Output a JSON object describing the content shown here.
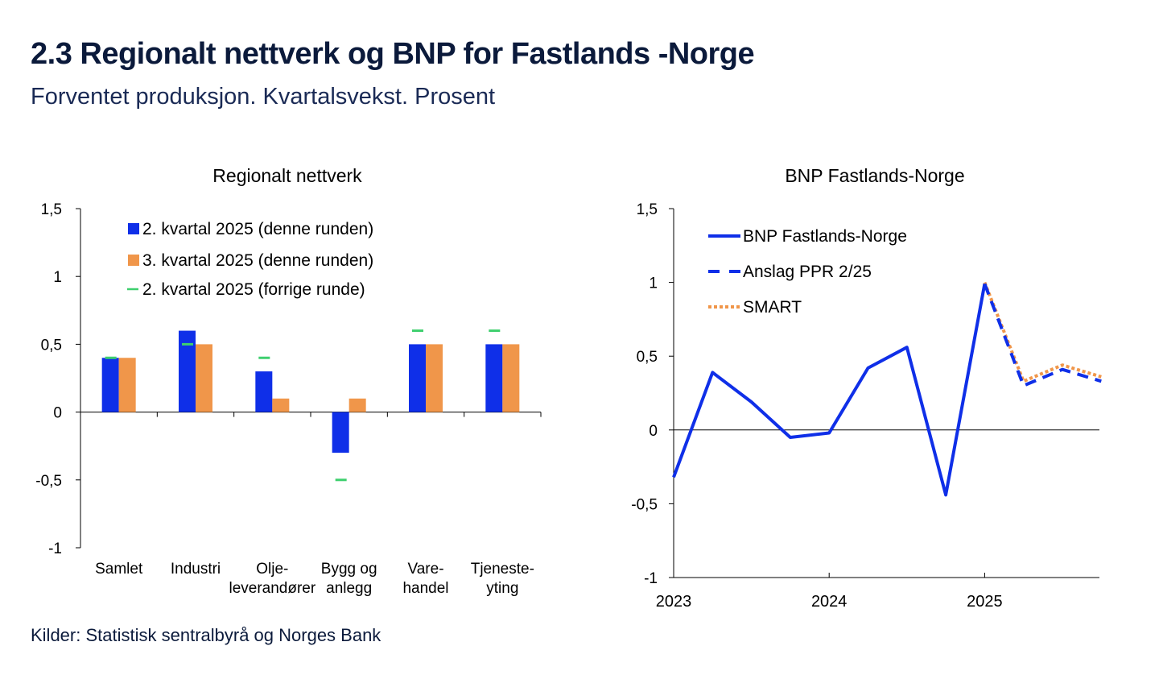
{
  "title": "2.3 Regionalt nettverk og BNP for Fastlands -Norge",
  "subtitle": "Forventet produksjon. Kvartalsvekst. Prosent",
  "source": "Kilder: Statistisk sentralbyrå og Norges Bank",
  "colors": {
    "blue": "#0f2fe8",
    "orange": "#f0964a",
    "green": "#3ecf6e"
  },
  "chart_data": [
    {
      "type": "bar",
      "title": "Regionalt nettverk",
      "categories": [
        [
          "Samlet"
        ],
        [
          "Industri"
        ],
        [
          "Olje-",
          "leverandører"
        ],
        [
          "Bygg og",
          "anlegg"
        ],
        [
          "Vare-",
          "handel"
        ],
        [
          "Tjeneste-",
          "yting"
        ]
      ],
      "series": [
        {
          "name": "2. kvartal 2025 (denne runden)",
          "kind": "bar",
          "color": "#0f2fe8",
          "values": [
            0.4,
            0.6,
            0.3,
            -0.3,
            0.5,
            0.5
          ]
        },
        {
          "name": "3. kvartal 2025 (denne runden)",
          "kind": "bar",
          "color": "#f0964a",
          "values": [
            0.4,
            0.5,
            0.1,
            0.1,
            0.5,
            0.5
          ]
        },
        {
          "name": "2. kvartal 2025 (forrige runde)",
          "kind": "marker",
          "color": "#3ecf6e",
          "values": [
            0.4,
            0.5,
            0.4,
            -0.5,
            0.6,
            0.6
          ]
        }
      ],
      "ylim": [
        -1,
        1.5
      ],
      "yticks": [
        -1,
        -0.5,
        0,
        0.5,
        1,
        1.5
      ],
      "yticklabels": [
        "-1",
        "-0,5",
        "0",
        "0,5",
        "1",
        "1,5"
      ],
      "legend_position": "top-left"
    },
    {
      "type": "line",
      "title": "BNP Fastlands-Norge",
      "x": [
        "2023 K1",
        "2023 K2",
        "2023 K3",
        "2023 K4",
        "2024 K1",
        "2024 K2",
        "2024 K3",
        "2024 K4",
        "2025 K1",
        "2025 K2",
        "2025 K3",
        "2025 K4"
      ],
      "series": [
        {
          "name": "BNP Fastlands-Norge",
          "style": "solid",
          "color": "#0f2fe8",
          "values": [
            -0.32,
            0.39,
            0.19,
            -0.05,
            -0.02,
            0.42,
            0.56,
            -0.44,
            0.99,
            null,
            null,
            null
          ]
        },
        {
          "name": "Anslag PPR 2/25",
          "style": "dashed",
          "color": "#0f2fe8",
          "values": [
            null,
            null,
            null,
            null,
            null,
            null,
            null,
            null,
            0.99,
            0.3,
            0.41,
            0.33
          ]
        },
        {
          "name": "SMART",
          "style": "dotted",
          "color": "#f0964a",
          "values": [
            null,
            null,
            null,
            null,
            null,
            null,
            null,
            null,
            1.0,
            0.33,
            0.44,
            0.36
          ]
        }
      ],
      "xticklabels": [
        "2023",
        "2024",
        "2025"
      ],
      "ylim": [
        -1,
        1.5
      ],
      "yticks": [
        -1,
        -0.5,
        0,
        0.5,
        1,
        1.5
      ],
      "yticklabels": [
        "-1",
        "-0,5",
        "0",
        "0,5",
        "1",
        "1,5"
      ],
      "legend_position": "top-left"
    }
  ]
}
